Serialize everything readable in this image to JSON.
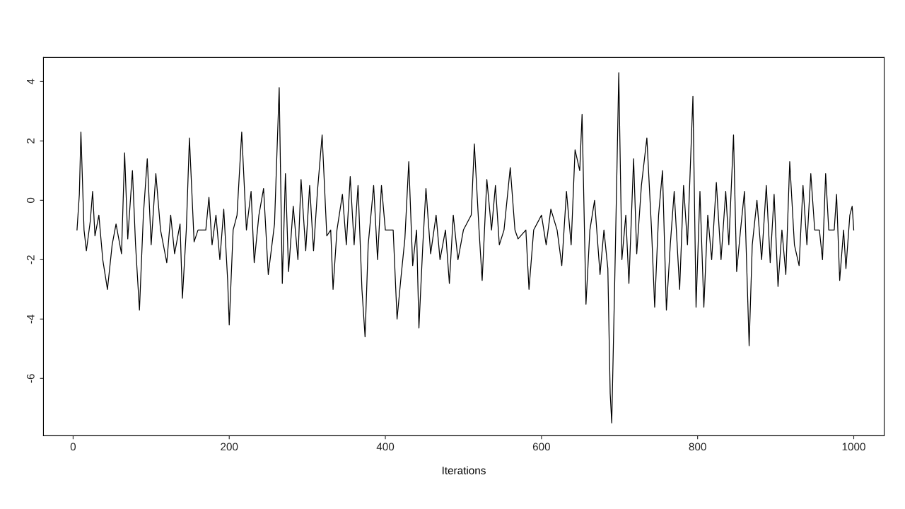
{
  "chart_data": {
    "type": "line",
    "xlabel": "Iterations",
    "xlim": [
      -38,
      1039
    ],
    "ylim": [
      -7.93,
      4.81
    ],
    "xticks": [
      0,
      200,
      400,
      600,
      800,
      1000
    ],
    "yticks": [
      -6,
      -4,
      -2,
      0,
      2,
      4
    ],
    "grid": false,
    "marker": "none",
    "line_style": "solid",
    "series": [
      {
        "color": "#000000",
        "x": [
          5,
          8,
          10,
          14,
          17,
          22,
          25,
          28,
          33,
          38,
          44,
          50,
          55,
          62,
          66,
          70,
          76,
          80,
          85,
          90,
          95,
          100,
          106,
          112,
          120,
          125,
          130,
          137,
          140,
          145,
          149,
          155,
          160,
          170,
          174,
          178,
          183,
          188,
          193,
          198,
          200,
          205,
          210,
          216,
          222,
          228,
          232,
          238,
          244,
          250,
          258,
          264,
          268,
          272,
          276,
          282,
          288,
          292,
          298,
          303,
          308,
          313,
          319,
          325,
          330,
          333,
          338,
          345,
          350,
          355,
          360,
          365,
          370,
          374,
          378,
          385,
          390,
          395,
          400,
          410,
          415,
          420,
          425,
          430,
          435,
          440,
          443,
          448,
          452,
          458,
          465,
          470,
          477,
          482,
          487,
          493,
          500,
          510,
          514,
          520,
          524,
          530,
          536,
          541,
          546,
          552,
          560,
          566,
          570,
          580,
          584,
          590,
          600,
          606,
          612,
          620,
          626,
          632,
          638,
          643,
          649,
          652,
          657,
          662,
          668,
          675,
          680,
          685,
          688,
          690,
          694,
          697,
          699,
          703,
          708,
          712,
          718,
          722,
          728,
          735,
          741,
          745,
          750,
          755,
          760,
          765,
          770,
          777,
          782,
          787,
          794,
          798,
          803,
          808,
          813,
          818,
          824,
          830,
          836,
          840,
          846,
          850,
          855,
          860,
          866,
          870,
          876,
          882,
          888,
          893,
          898,
          903,
          908,
          913,
          918,
          924,
          930,
          935,
          940,
          945,
          950,
          956,
          960,
          964,
          968,
          975,
          978,
          982,
          987,
          990,
          995,
          998,
          1000
        ],
        "values": [
          -1,
          0.2,
          2.3,
          -1,
          -1.7,
          -0.7,
          0.3,
          -1.2,
          -0.5,
          -2.0,
          -3.0,
          -1.5,
          -0.8,
          -1.8,
          1.6,
          -1.3,
          1.0,
          -1.5,
          -3.7,
          -0.5,
          1.4,
          -1.5,
          0.9,
          -1,
          -2.1,
          -0.5,
          -1.8,
          -0.8,
          -3.3,
          -1,
          2.1,
          -1.4,
          -1,
          -1,
          0.1,
          -1.5,
          -0.5,
          -2.0,
          -0.3,
          -2.7,
          -4.2,
          -1,
          -0.5,
          2.3,
          -1,
          0.3,
          -2.1,
          -0.5,
          0.4,
          -2.5,
          -0.8,
          3.8,
          -2.8,
          0.9,
          -2.4,
          -0.2,
          -2.0,
          0.7,
          -1.7,
          0.5,
          -1.7,
          0.3,
          2.2,
          -1.2,
          -1,
          -3.0,
          -1,
          0.2,
          -1.5,
          0.8,
          -1.5,
          0.5,
          -3.0,
          -4.6,
          -1.5,
          0.5,
          -2,
          0.5,
          -1,
          -1,
          -4.0,
          -2.6,
          -1.3,
          1.3,
          -2.2,
          -1,
          -4.3,
          -1.5,
          0.4,
          -1.8,
          -0.5,
          -2.0,
          -1,
          -2.8,
          -0.5,
          -2,
          -1,
          -0.5,
          1.9,
          -1,
          -2.7,
          0.7,
          -1,
          0.5,
          -1.5,
          -1,
          1.1,
          -1,
          -1.3,
          -1,
          -3.0,
          -1,
          -0.5,
          -1.5,
          -0.3,
          -1,
          -2.2,
          0.3,
          -1.5,
          1.7,
          1.0,
          2.9,
          -3.5,
          -1,
          0.0,
          -2.5,
          -1,
          -2.3,
          -6.5,
          -7.5,
          -2.5,
          1.5,
          4.3,
          -2,
          -0.5,
          -2.8,
          1.4,
          -1.8,
          0.5,
          2.1,
          -1,
          -3.6,
          -0.5,
          1.0,
          -3.7,
          -1.5,
          0.3,
          -3.0,
          0.5,
          -1.5,
          3.5,
          -3.6,
          0.3,
          -3.6,
          -0.5,
          -2.0,
          0.6,
          -2,
          0.3,
          -1.5,
          2.2,
          -2.4,
          -1,
          0.3,
          -4.9,
          -1.5,
          0.0,
          -2.0,
          0.5,
          -2.1,
          0.2,
          -2.9,
          -1,
          -2.5,
          1.3,
          -1.5,
          -2.2,
          0.5,
          -1.5,
          0.9,
          -1,
          -1,
          -2.0,
          0.9,
          -1,
          -1,
          0.2,
          -2.7,
          -1,
          -2.3,
          -0.5,
          -0.2,
          -1
        ]
      }
    ]
  }
}
